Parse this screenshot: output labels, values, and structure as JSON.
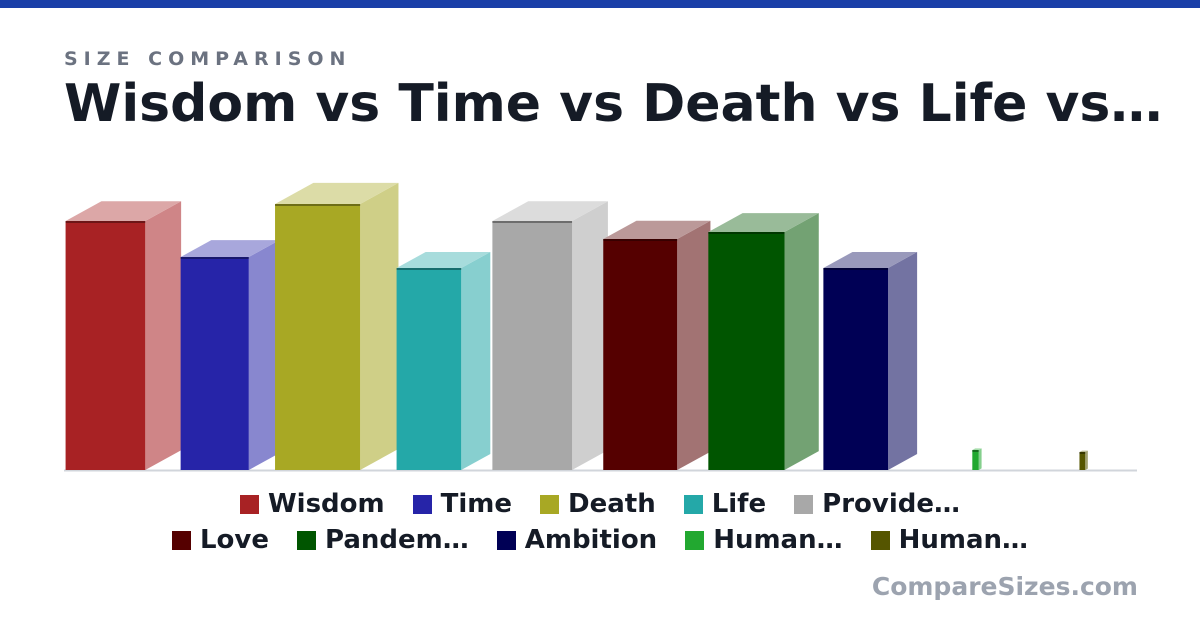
{
  "chart_data": {
    "type": "bar3d",
    "kicker": "SIZE COMPARISON",
    "title": "Wisdom vs Time vs Death vs Life vs…",
    "footer": "CompareSizes.com",
    "categories": [
      "Wisdom",
      "Time",
      "Death",
      "Life",
      "Provide…",
      "Love",
      "Pandem…",
      "Ambition",
      "Human…",
      "Human…"
    ],
    "values": [
      249,
      213,
      266,
      202,
      249,
      231,
      238,
      202,
      20,
      18
    ],
    "colors": [
      "#a82224",
      "#2624a8",
      "#a8a824",
      "#24a8a8",
      "#a8a8a8",
      "#550000",
      "#005500",
      "#000055",
      "#22a830",
      "#555500"
    ]
  }
}
